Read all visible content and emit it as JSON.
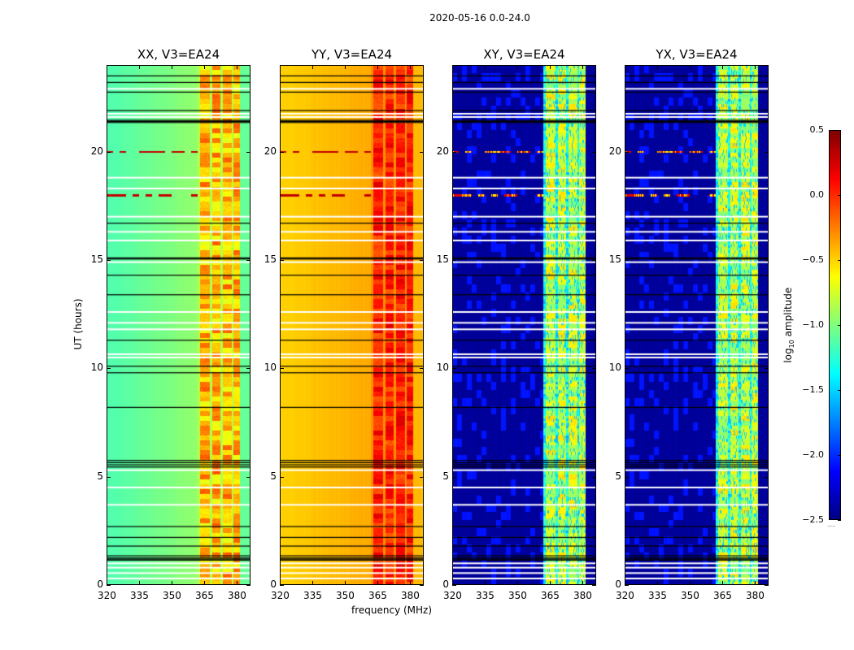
{
  "chart_data": {
    "type": "heatmap",
    "suptitle": "2020-05-16 0.0-24.0",
    "xlabel": "frequency (MHz)",
    "ylabel": "UT (hours)",
    "xlim": [
      320,
      386.4
    ],
    "ylim": [
      0,
      24
    ],
    "xticks": [
      320,
      335,
      350,
      365,
      380
    ],
    "yticks": [
      0,
      5,
      10,
      15,
      20
    ],
    "colorbar": {
      "label_main": "log",
      "label_sub": "10",
      "label_rest": " amplitude",
      "range": [
        -2.5,
        0.5
      ],
      "ticks": [
        "0.5",
        "0.0",
        "−0.5",
        "−1.0",
        "−1.5",
        "−2.0",
        "−2.5"
      ],
      "tick_values": [
        0.5,
        0.0,
        -0.5,
        -1.0,
        -1.5,
        -2.0,
        -2.5
      ],
      "colormap": "jet"
    },
    "panels": [
      {
        "title": "XX, V3=EA24",
        "base": -1.15,
        "slope": 0.005,
        "band": -0.7,
        "peak": 0.0
      },
      {
        "title": "YY, V3=EA24",
        "base": -0.5,
        "slope": 0.003,
        "band": -0.15,
        "peak": 0.3
      },
      {
        "title": "XY, V3=EA24",
        "base": -2.42,
        "slope": 0.0,
        "band": -1.0,
        "peak": -0.4
      },
      {
        "title": "YX, V3=EA24",
        "base": -2.42,
        "slope": 0.0,
        "band": -1.0,
        "peak": -0.4
      }
    ],
    "rfi_bands_mhz": [
      [
        363,
        367.5
      ],
      [
        368.5,
        372.5
      ],
      [
        373.5,
        377.5
      ],
      [
        378.5,
        381.5
      ]
    ],
    "flagged_white_hours": [
      0.3,
      0.55,
      0.8,
      1.0,
      3.7,
      4.5,
      5.3,
      10.5,
      10.65,
      11.8,
      12.1,
      12.6,
      14.9,
      15.9,
      16.3,
      17.0,
      18.3,
      18.8,
      21.6,
      21.75,
      22.9
    ],
    "flagged_black_hours": [
      1.15,
      1.2,
      1.25,
      1.35,
      1.8,
      2.2,
      2.7,
      5.45,
      5.55,
      5.65,
      5.75,
      8.2,
      9.8,
      10.1,
      11.3,
      13.4,
      14.3,
      15.05,
      15.1,
      16.7,
      21.35,
      21.4,
      21.45,
      21.9,
      22.75,
      23.2,
      23.5
    ],
    "rfi_time_hours": [
      18.0,
      20.0
    ]
  }
}
